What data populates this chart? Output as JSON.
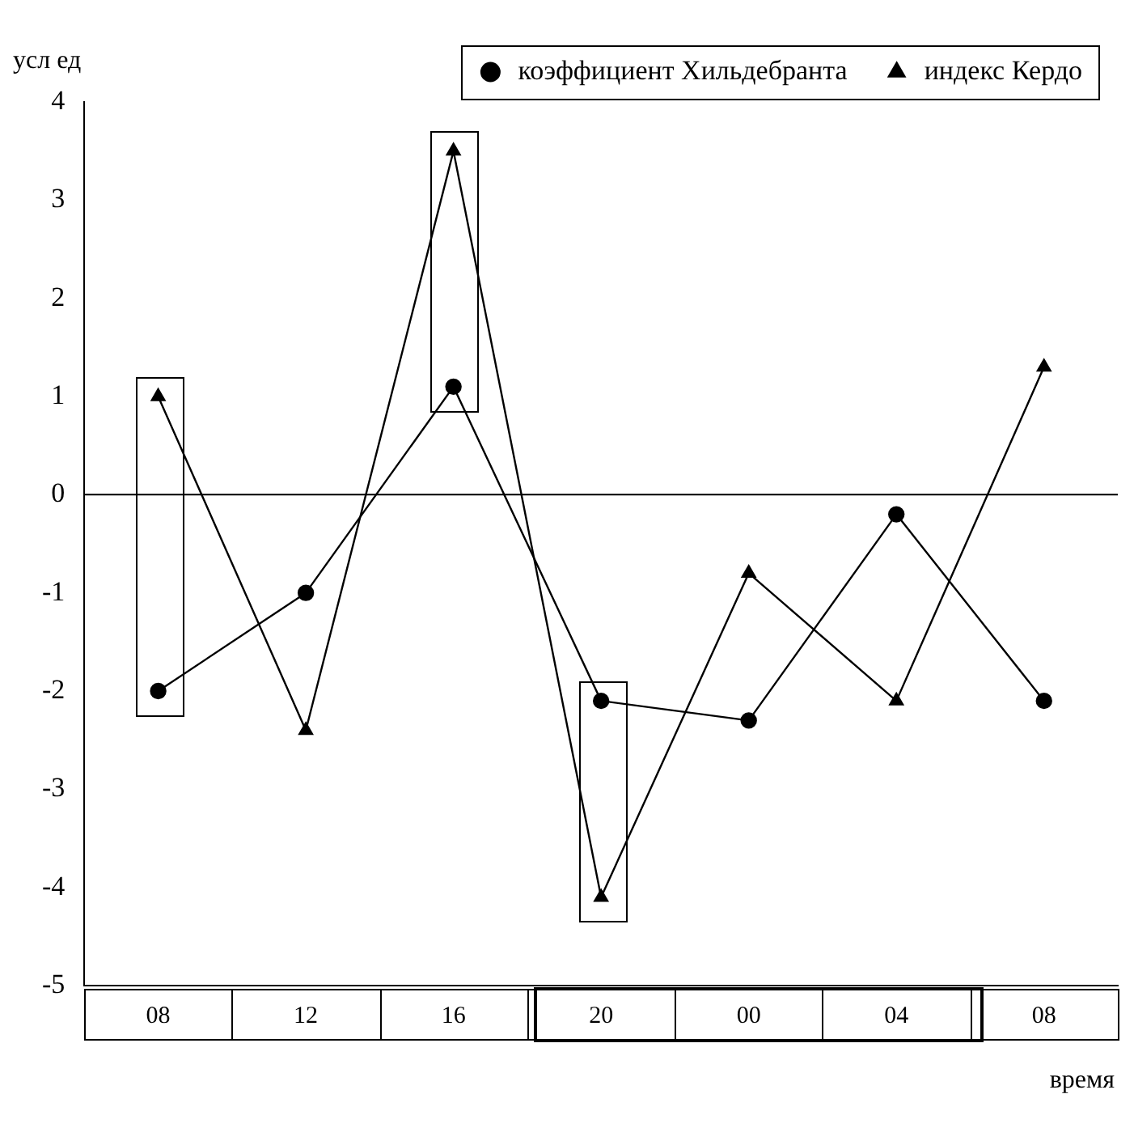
{
  "chart_data": {
    "type": "line",
    "xlabel": "время",
    "ylabel": "усл ед",
    "categories": [
      "08",
      "12",
      "16",
      "20",
      "00",
      "04",
      "08"
    ],
    "series": [
      {
        "name": "коэффициент Хильдебранта",
        "color": "#000000",
        "marker": "circle",
        "values": [
          -2.0,
          -1.0,
          1.1,
          -2.1,
          -2.3,
          -0.2,
          -2.1
        ]
      },
      {
        "name": "индекс Кердо",
        "color": "#000000",
        "marker": "triangle",
        "values": [
          1.0,
          -2.4,
          3.5,
          -4.1,
          -0.8,
          -2.1,
          1.3
        ]
      }
    ],
    "ylim": [
      -5,
      4
    ],
    "yticks": [
      -5,
      -4,
      -3,
      -2,
      -1,
      0,
      1,
      2,
      3,
      4
    ],
    "ref_lines": [
      {
        "axis": "y",
        "value": 0,
        "color": "#000000"
      }
    ],
    "grid": false,
    "legend": "top right",
    "line_style": "solid"
  }
}
